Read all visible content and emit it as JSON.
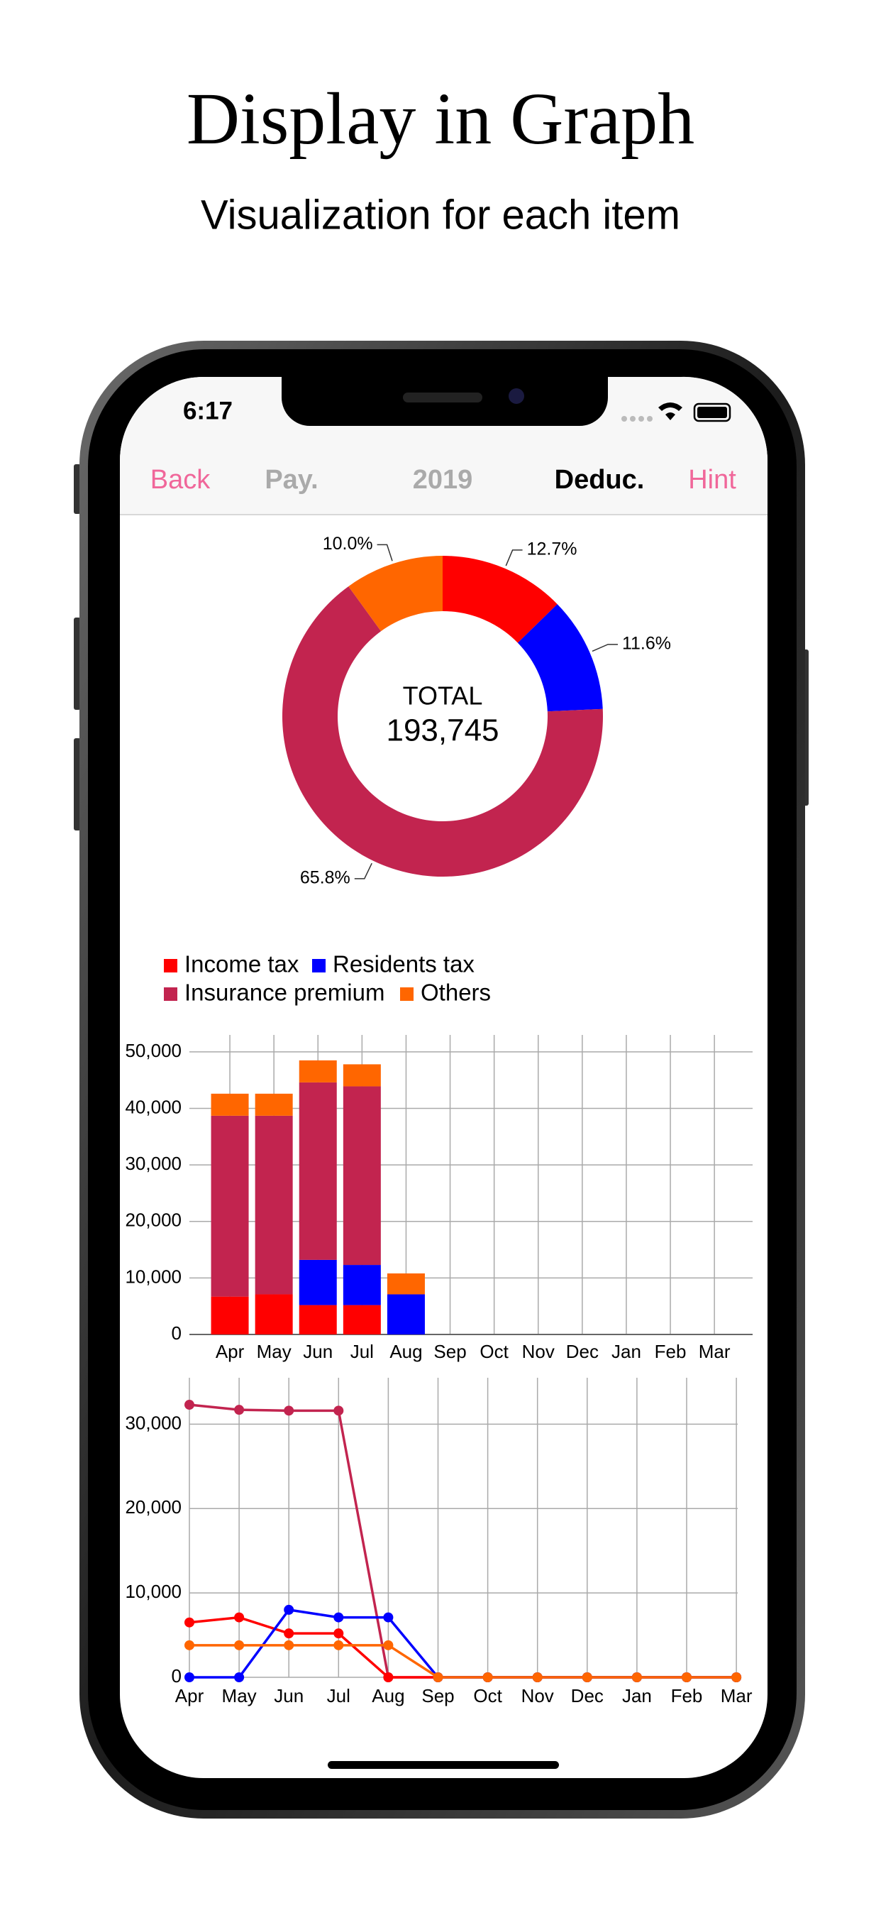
{
  "header": {
    "title": "Display in Graph",
    "subtitle": "Visualization for each item"
  },
  "status_bar": {
    "time": "6:17"
  },
  "nav": {
    "back": "Back",
    "tabs": [
      "Pay.",
      "2019",
      "Deduc."
    ],
    "hint": "Hint"
  },
  "chart_data": [
    {
      "type": "pie",
      "values": [
        12.7,
        11.6,
        65.8,
        10.0
      ],
      "value_labels": [
        "12.7%",
        "11.6%",
        "65.8%",
        "10.0%"
      ],
      "colors": [
        "#ff0000",
        "#0000ff",
        "#c2244f",
        "#ff6600"
      ],
      "center_label": "TOTAL",
      "center_value": "193,745"
    },
    {
      "type": "bar",
      "stacked": true,
      "categories": [
        "Apr",
        "May",
        "Jun",
        "Jul",
        "Aug",
        "Sep",
        "Oct",
        "Nov",
        "Dec",
        "Jan",
        "Feb",
        "Mar"
      ],
      "series": [
        {
          "name": "Income tax",
          "color": "#ff0000",
          "values": [
            6700,
            7100,
            5200,
            5200,
            0,
            0,
            0,
            0,
            0,
            0,
            0,
            0
          ]
        },
        {
          "name": "Residents tax",
          "color": "#0000ff",
          "values": [
            0,
            0,
            8000,
            7100,
            7100,
            0,
            0,
            0,
            0,
            0,
            0,
            0
          ]
        },
        {
          "name": "Insurance premium",
          "color": "#c2244f",
          "values": [
            32000,
            31600,
            31400,
            31600,
            0,
            0,
            0,
            0,
            0,
            0,
            0,
            0
          ]
        },
        {
          "name": "Others",
          "color": "#ff6600",
          "values": [
            3900,
            3900,
            3900,
            3900,
            3700,
            0,
            0,
            0,
            0,
            0,
            0,
            0
          ]
        }
      ],
      "ylim": [
        0,
        53000
      ],
      "yticks": [
        0,
        {
          "value": 10000,
          "label": "10,000"
        },
        {
          "value": 20000,
          "label": "20,000"
        },
        {
          "value": 30000,
          "label": "30,000"
        },
        {
          "value": 40000,
          "label": "40,000"
        },
        {
          "value": 50000,
          "label": "50,000"
        }
      ],
      "grid": true,
      "legend": "top-left"
    },
    {
      "type": "line",
      "categories": [
        "Apr",
        "May",
        "Jun",
        "Jul",
        "Aug",
        "Sep",
        "Oct",
        "Nov",
        "Dec",
        "Jan",
        "Feb",
        "Mar"
      ],
      "series": [
        {
          "color": "#c2244f",
          "values": [
            32300,
            31700,
            31600,
            31600,
            0,
            0,
            0,
            0,
            0,
            0,
            0,
            0
          ]
        },
        {
          "color": "#ff0000",
          "values": [
            6500,
            7100,
            5200,
            5200,
            0,
            0,
            0,
            0,
            0,
            0,
            0,
            0
          ]
        },
        {
          "color": "#0000ff",
          "values": [
            0,
            0,
            8000,
            7100,
            7100,
            0,
            0,
            0,
            0,
            0,
            0,
            0
          ]
        },
        {
          "color": "#ff6600",
          "values": [
            3800,
            3800,
            3800,
            3800,
            3800,
            0,
            0,
            0,
            0,
            0,
            0,
            0
          ]
        }
      ],
      "ylim": [
        0,
        35500
      ],
      "yticks": [
        0,
        {
          "value": 10000,
          "label": "10,000"
        },
        {
          "value": 20000,
          "label": "20,000"
        },
        {
          "value": 30000,
          "label": "30,000"
        }
      ],
      "grid": true
    }
  ]
}
